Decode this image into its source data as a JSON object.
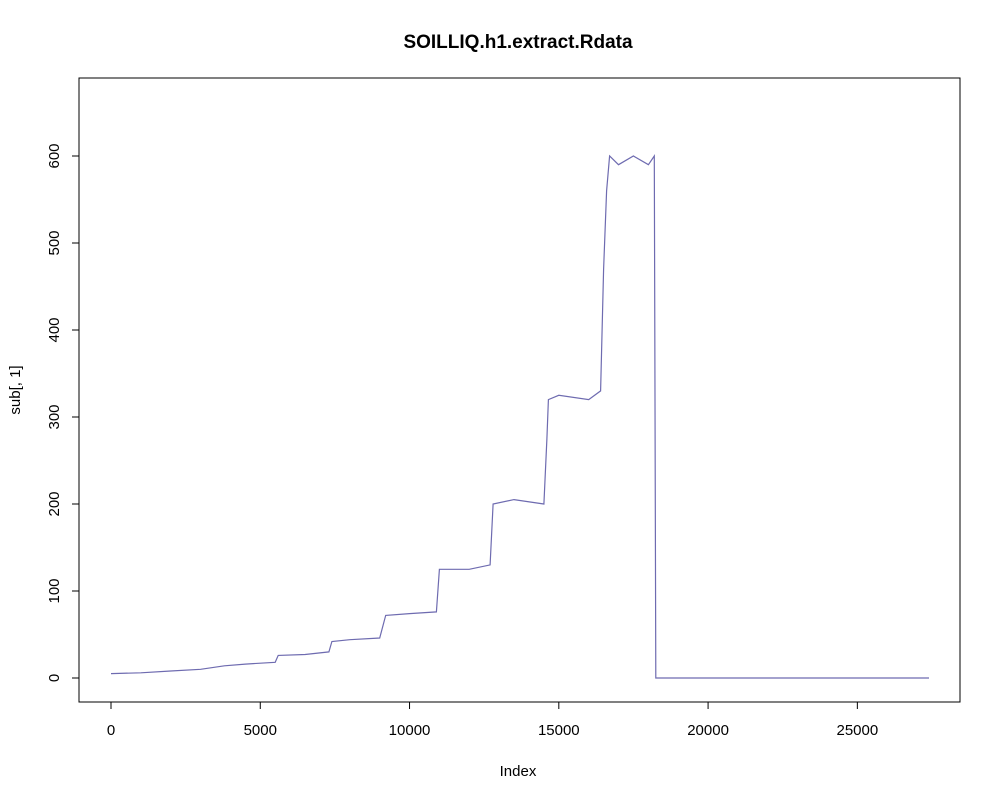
{
  "chart_data": {
    "type": "line",
    "title": "SOILLIQ.h1.extract.Rdata",
    "xlabel": "Index",
    "ylabel": "sub[, 1]",
    "xlim": [
      0,
      27500
    ],
    "ylim": [
      0,
      665
    ],
    "x_ticks": [
      0,
      5000,
      10000,
      15000,
      20000,
      25000
    ],
    "x_tick_labels": [
      "0",
      "5000",
      "10000",
      "15000",
      "20000",
      "25000"
    ],
    "y_ticks": [
      0,
      100,
      200,
      300,
      400,
      500,
      600
    ],
    "y_tick_labels": [
      "0",
      "100",
      "200",
      "300",
      "400",
      "500",
      "600"
    ],
    "grid": false,
    "legend": "none",
    "line_color": "#6E6BB0",
    "series": [
      {
        "x": [
          1,
          1000,
          2000,
          3000,
          3800,
          4500,
          5500,
          5600,
          6500,
          7300,
          7400,
          8000,
          9000,
          9200,
          10000,
          10900,
          11000,
          12000,
          12700,
          12800,
          13500,
          14500,
          14600,
          14650,
          15000,
          16000,
          16400,
          16500,
          16600,
          16700,
          17000,
          17500,
          18000,
          18200,
          18250,
          18300,
          27400
        ],
        "y": [
          5,
          6,
          8,
          10,
          14,
          16,
          18,
          26,
          27,
          30,
          42,
          44,
          46,
          72,
          74,
          76,
          125,
          125,
          130,
          200,
          205,
          200,
          275,
          320,
          325,
          320,
          330,
          470,
          560,
          600,
          590,
          600,
          590,
          600,
          0,
          0,
          0
        ]
      }
    ]
  }
}
